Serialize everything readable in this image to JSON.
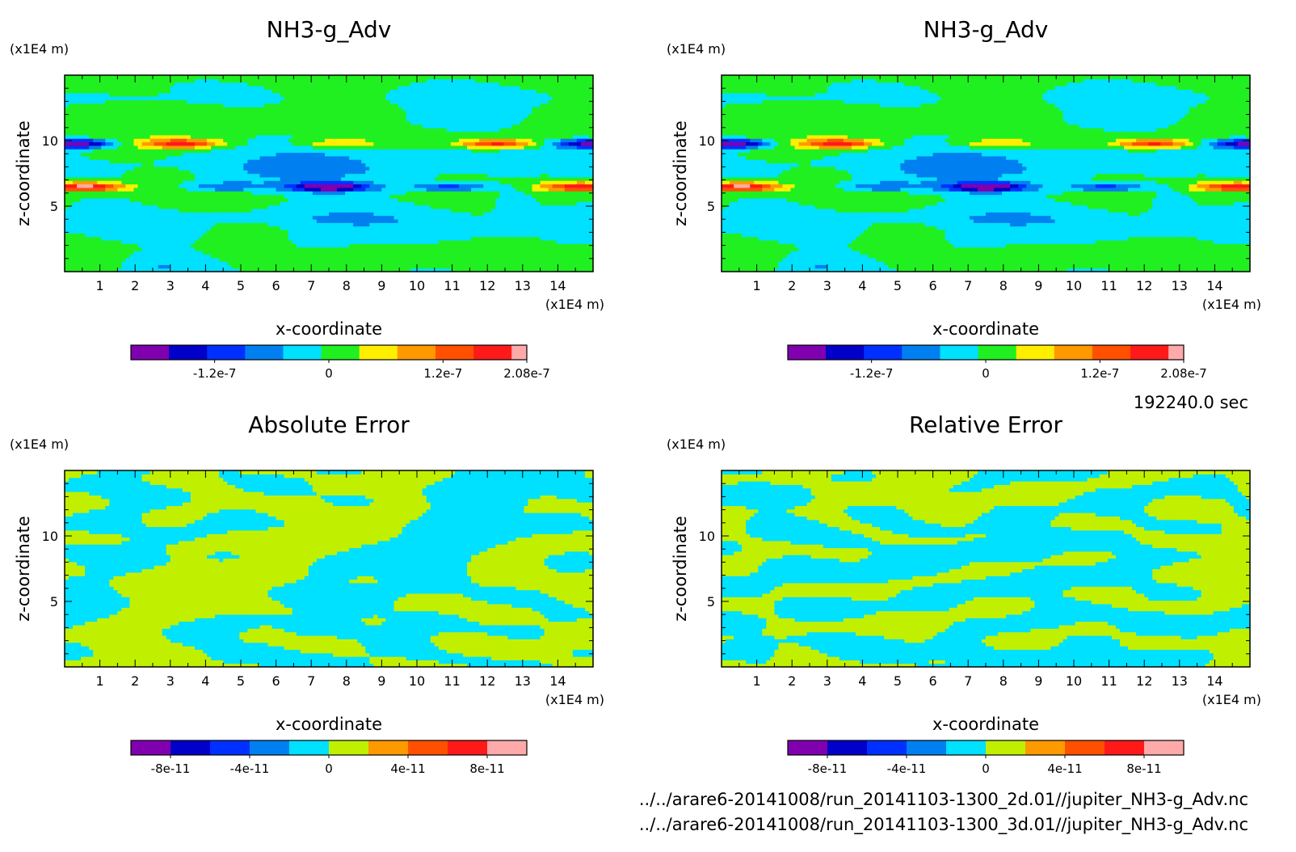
{
  "figure": {
    "time_label": "192240.0 sec",
    "files": [
      "../../arare6-20141008/run_20141103-1300_2d.01//jupiter_NH3-g_Adv.nc",
      "../../arare6-20141008/run_20141103-1300_3d.01//jupiter_NH3-g_Adv.nc"
    ]
  },
  "panels": [
    {
      "title": "NH3-g_Adv",
      "yunit": "(x1E4 m)",
      "xunit": "(x1E4 m)",
      "xlabel": "x-coordinate",
      "ylabel": "z-coordinate"
    },
    {
      "title": "NH3-g_Adv",
      "yunit": "(x1E4 m)",
      "xunit": "(x1E4 m)",
      "xlabel": "x-coordinate",
      "ylabel": "z-coordinate"
    },
    {
      "title": "Absolute Error",
      "yunit": "(x1E4 m)",
      "xunit": "(x1E4 m)",
      "xlabel": "x-coordinate",
      "ylabel": "z-coordinate"
    },
    {
      "title": "Relative Error",
      "yunit": "(x1E4 m)",
      "xunit": "(x1E4 m)",
      "xlabel": "x-coordinate",
      "ylabel": "z-coordinate"
    }
  ],
  "chart_data": [
    {
      "type": "heatmap",
      "title": "NH3-g_Adv",
      "xlabel": "x-coordinate",
      "ylabel": "z-coordinate",
      "xlim": [
        0,
        15
      ],
      "ylim": [
        0,
        15
      ],
      "xticks": [
        1,
        2,
        3,
        4,
        5,
        6,
        7,
        8,
        9,
        10,
        11,
        12,
        13,
        14
      ],
      "yticks": [
        5,
        10
      ],
      "colorbar": {
        "levels": [
          -2.08e-07,
          -1.68e-07,
          -1.28e-07,
          -8.8e-08,
          -4.8e-08,
          -8e-09,
          3.2e-08,
          7.2e-08,
          1.12e-07,
          1.52e-07,
          1.92e-07,
          2.08e-07
        ],
        "colors": [
          "#8000b0",
          "#0000c8",
          "#0030ff",
          "#0080f0",
          "#00e0ff",
          "#20f020",
          "#ffee00",
          "#ff9900",
          "#ff5000",
          "#ff1a1a",
          "#ffaaaa"
        ],
        "tick_values": [
          -1.2e-07,
          0,
          1.2e-07,
          2.08e-07
        ],
        "tick_labels": [
          "-1.2e-7",
          "0",
          "1.2e-7",
          "2.08e-7"
        ]
      },
      "features": [
        {
          "x": 0.3,
          "z": 9.8,
          "value": -2e-07
        },
        {
          "x": 15.0,
          "z": 9.8,
          "value": -1.8e-07
        },
        {
          "x": 3.3,
          "z": 9.8,
          "value": 1.6e-07
        },
        {
          "x": 7.8,
          "z": 9.8,
          "value": 8e-08
        },
        {
          "x": 12.3,
          "z": 9.8,
          "value": 1.6e-07
        },
        {
          "x": 0.6,
          "z": 6.5,
          "value": 2e-07
        },
        {
          "x": 14.7,
          "z": 6.5,
          "value": 1.8e-07
        },
        {
          "x": 7.5,
          "z": 6.5,
          "value": -2e-07
        },
        {
          "x": 4.4,
          "z": 6.5,
          "value": -9e-08
        },
        {
          "x": 11.0,
          "z": 6.5,
          "value": -9e-08
        }
      ]
    },
    {
      "type": "heatmap",
      "title": "NH3-g_Adv",
      "xlabel": "x-coordinate",
      "ylabel": "z-coordinate",
      "xlim": [
        0,
        15
      ],
      "ylim": [
        0,
        15
      ],
      "xticks": [
        1,
        2,
        3,
        4,
        5,
        6,
        7,
        8,
        9,
        10,
        11,
        12,
        13,
        14
      ],
      "yticks": [
        5,
        10
      ],
      "colorbar": {
        "levels": [
          -2.08e-07,
          -1.68e-07,
          -1.28e-07,
          -8.8e-08,
          -4.8e-08,
          -8e-09,
          3.2e-08,
          7.2e-08,
          1.12e-07,
          1.52e-07,
          1.92e-07,
          2.08e-07
        ],
        "colors": [
          "#8000b0",
          "#0000c8",
          "#0030ff",
          "#0080f0",
          "#00e0ff",
          "#20f020",
          "#ffee00",
          "#ff9900",
          "#ff5000",
          "#ff1a1a",
          "#ffaaaa"
        ],
        "tick_values": [
          -1.2e-07,
          0,
          1.2e-07,
          2.08e-07
        ],
        "tick_labels": [
          "-1.2e-7",
          "0",
          "1.2e-7",
          "2.08e-7"
        ]
      },
      "features": [
        {
          "x": 0.3,
          "z": 9.8,
          "value": -2e-07
        },
        {
          "x": 15.0,
          "z": 9.8,
          "value": -1.8e-07
        },
        {
          "x": 3.3,
          "z": 9.8,
          "value": 1.6e-07
        },
        {
          "x": 7.8,
          "z": 9.8,
          "value": 8e-08
        },
        {
          "x": 12.3,
          "z": 9.8,
          "value": 1.6e-07
        },
        {
          "x": 0.6,
          "z": 6.5,
          "value": 2e-07
        },
        {
          "x": 14.7,
          "z": 6.5,
          "value": 1.8e-07
        },
        {
          "x": 7.5,
          "z": 6.5,
          "value": -2e-07
        },
        {
          "x": 4.4,
          "z": 6.5,
          "value": -9e-08
        },
        {
          "x": 11.0,
          "z": 6.5,
          "value": -9e-08
        }
      ]
    },
    {
      "type": "heatmap",
      "title": "Absolute Error",
      "xlabel": "x-coordinate",
      "ylabel": "z-coordinate",
      "xlim": [
        0,
        15
      ],
      "ylim": [
        0,
        15
      ],
      "xticks": [
        1,
        2,
        3,
        4,
        5,
        6,
        7,
        8,
        9,
        10,
        11,
        12,
        13,
        14
      ],
      "yticks": [
        5,
        10
      ],
      "colorbar": {
        "levels": [
          -1e-10,
          -8e-11,
          -6e-11,
          -4e-11,
          -2e-11,
          0,
          2e-11,
          4e-11,
          6e-11,
          8e-11,
          1e-10
        ],
        "colors": [
          "#8000b0",
          "#0000c8",
          "#0030ff",
          "#0080f0",
          "#00e0ff",
          "#c0f000",
          "#ff9900",
          "#ff5000",
          "#ff1a1a",
          "#ffaaaa"
        ],
        "tick_values": [
          -8e-11,
          -4e-11,
          0,
          4e-11,
          8e-11
        ],
        "tick_labels": [
          "-8e-11",
          "-4e-11",
          "0",
          "4e-11",
          "8e-11"
        ]
      },
      "noise_seed": 17
    },
    {
      "type": "heatmap",
      "title": "Relative Error",
      "xlabel": "x-coordinate",
      "ylabel": "z-coordinate",
      "xlim": [
        0,
        15
      ],
      "ylim": [
        0,
        15
      ],
      "xticks": [
        1,
        2,
        3,
        4,
        5,
        6,
        7,
        8,
        9,
        10,
        11,
        12,
        13,
        14
      ],
      "yticks": [
        5,
        10
      ],
      "colorbar": {
        "levels": [
          -1e-10,
          -8e-11,
          -6e-11,
          -4e-11,
          -2e-11,
          0,
          2e-11,
          4e-11,
          6e-11,
          8e-11,
          1e-10
        ],
        "colors": [
          "#8000b0",
          "#0000c8",
          "#0030ff",
          "#0080f0",
          "#00e0ff",
          "#c0f000",
          "#ff9900",
          "#ff5000",
          "#ff1a1a",
          "#ffaaaa"
        ],
        "tick_values": [
          -8e-11,
          -4e-11,
          0,
          4e-11,
          8e-11
        ],
        "tick_labels": [
          "-8e-11",
          "-4e-11",
          "0",
          "4e-11",
          "8e-11"
        ]
      },
      "noise_seed": 53
    }
  ]
}
